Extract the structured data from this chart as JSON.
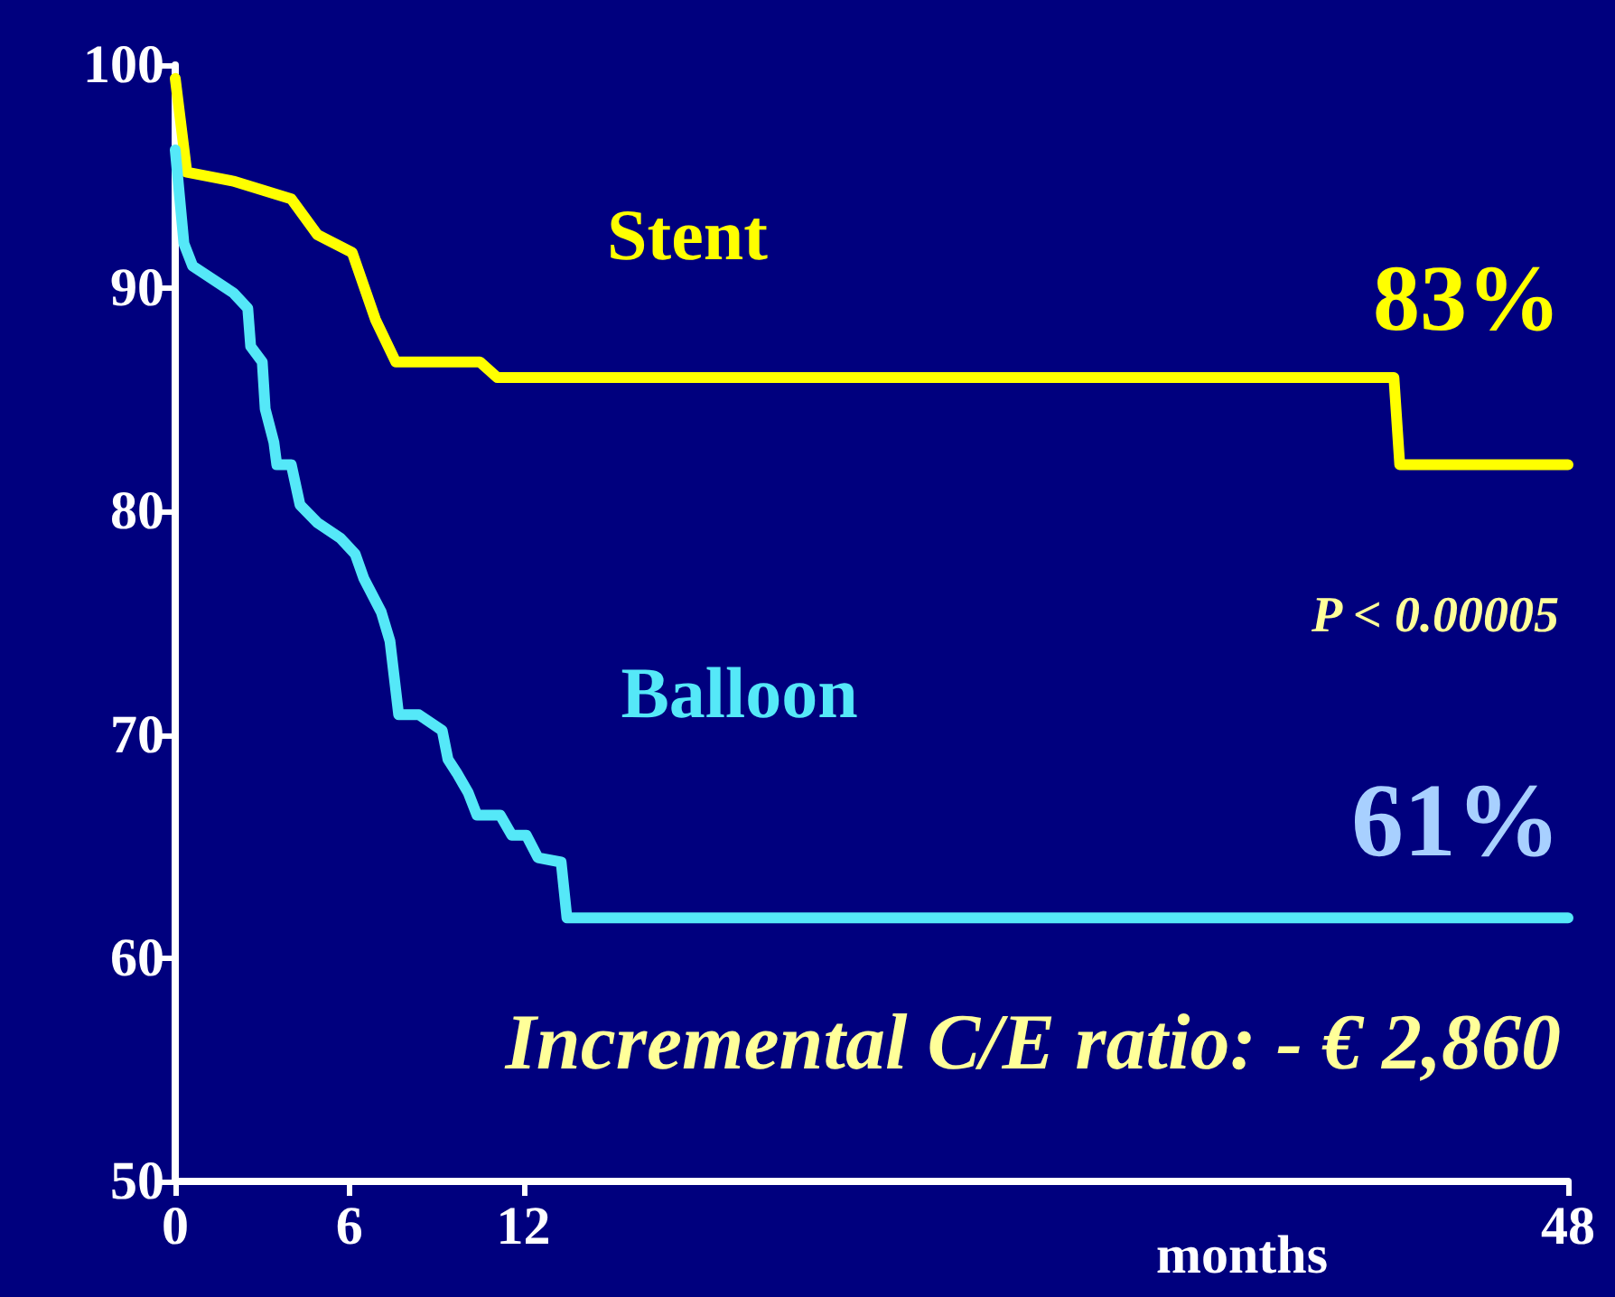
{
  "chart_data": {
    "type": "line",
    "xlabel": "months",
    "xlim": [
      0,
      48
    ],
    "xticks": [
      0,
      6,
      12,
      48
    ],
    "ylim": [
      50,
      100
    ],
    "yticks": [
      50,
      60,
      70,
      80,
      90,
      100
    ],
    "grid": false,
    "legend": false,
    "marker": "none",
    "line_style": "solid",
    "series": [
      {
        "name": "Stent",
        "color": "#ffff00",
        "x": [
          0,
          0.4,
          2.0,
          4.0,
          4.9,
          6.1,
          6.9,
          7.6,
          10.5,
          11.1,
          42.0,
          42.2,
          48
        ],
        "values": [
          99.4,
          95.2,
          94.8,
          94.0,
          92.4,
          91.6,
          88.6,
          86.7,
          86.7,
          86.0,
          86.0,
          82.1,
          82.1
        ]
      },
      {
        "name": "Balloon",
        "color": "#55e8f8",
        "x": [
          0,
          0.3,
          0.6,
          2.0,
          2.5,
          2.6,
          3.0,
          3.1,
          3.4,
          3.5,
          4.0,
          4.3,
          4.9,
          5.7,
          6.2,
          6.5,
          7.1,
          7.4,
          7.7,
          8.4,
          9.2,
          9.4,
          9.7,
          10.1,
          10.4,
          11.2,
          11.6,
          12.1,
          12.5,
          13.3,
          13.5,
          48
        ],
        "values": [
          96.2,
          92.0,
          91.0,
          89.8,
          89.1,
          87.4,
          86.7,
          84.6,
          83.1,
          82.1,
          82.1,
          80.3,
          79.5,
          78.8,
          78.1,
          77.0,
          75.5,
          74.2,
          70.9,
          70.9,
          70.2,
          68.9,
          68.3,
          67.4,
          66.4,
          66.4,
          65.5,
          65.5,
          64.5,
          64.3,
          61.8,
          61.8
        ]
      }
    ],
    "annotations": [
      "83%",
      "P < 0.00005",
      "61%",
      "Incremental C/E ratio: - € 2,860"
    ]
  }
}
